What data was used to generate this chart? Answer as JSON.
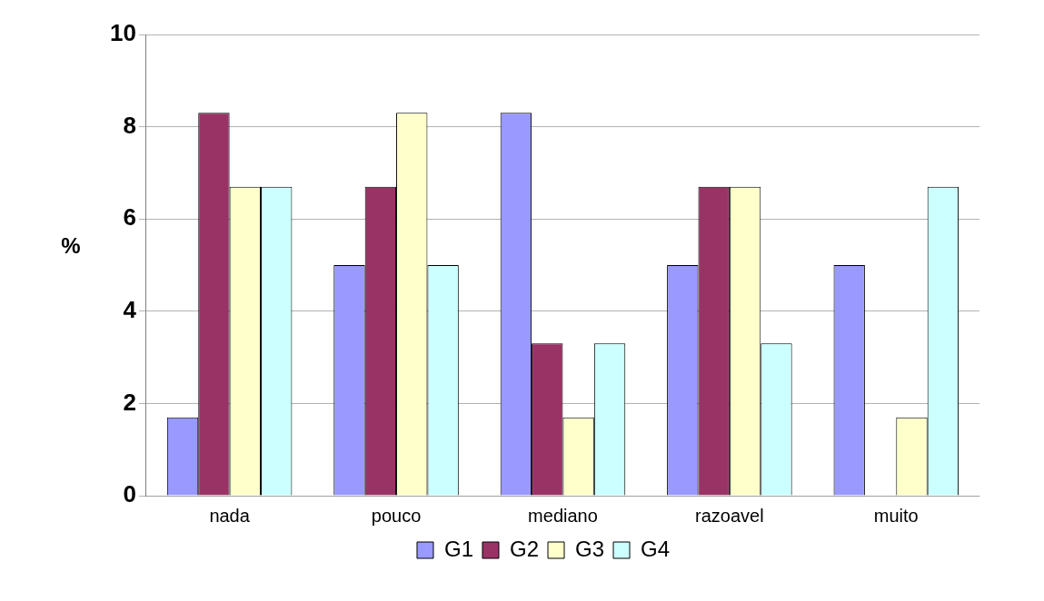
{
  "chart_data": {
    "type": "bar",
    "ylabel": "%",
    "categories": [
      "nada",
      "pouco",
      "mediano",
      "razoavel",
      "muito"
    ],
    "series": [
      {
        "name": "G1",
        "color": "#9999ff",
        "values": [
          1.7,
          5,
          8.3,
          5,
          5
        ]
      },
      {
        "name": "G2",
        "color": "#993366",
        "values": [
          8.3,
          6.7,
          3.3,
          6.7,
          0
        ]
      },
      {
        "name": "G3",
        "color": "#ffffcc",
        "values": [
          6.7,
          8.3,
          1.7,
          6.7,
          1.7
        ]
      },
      {
        "name": "G4",
        "color": "#ccffff",
        "values": [
          6.7,
          5,
          3.3,
          3.3,
          6.7
        ]
      }
    ],
    "ylim": [
      0,
      10
    ],
    "yticks": [
      0,
      2,
      4,
      6,
      8,
      10
    ],
    "grid": "y",
    "legend": "bottom"
  }
}
